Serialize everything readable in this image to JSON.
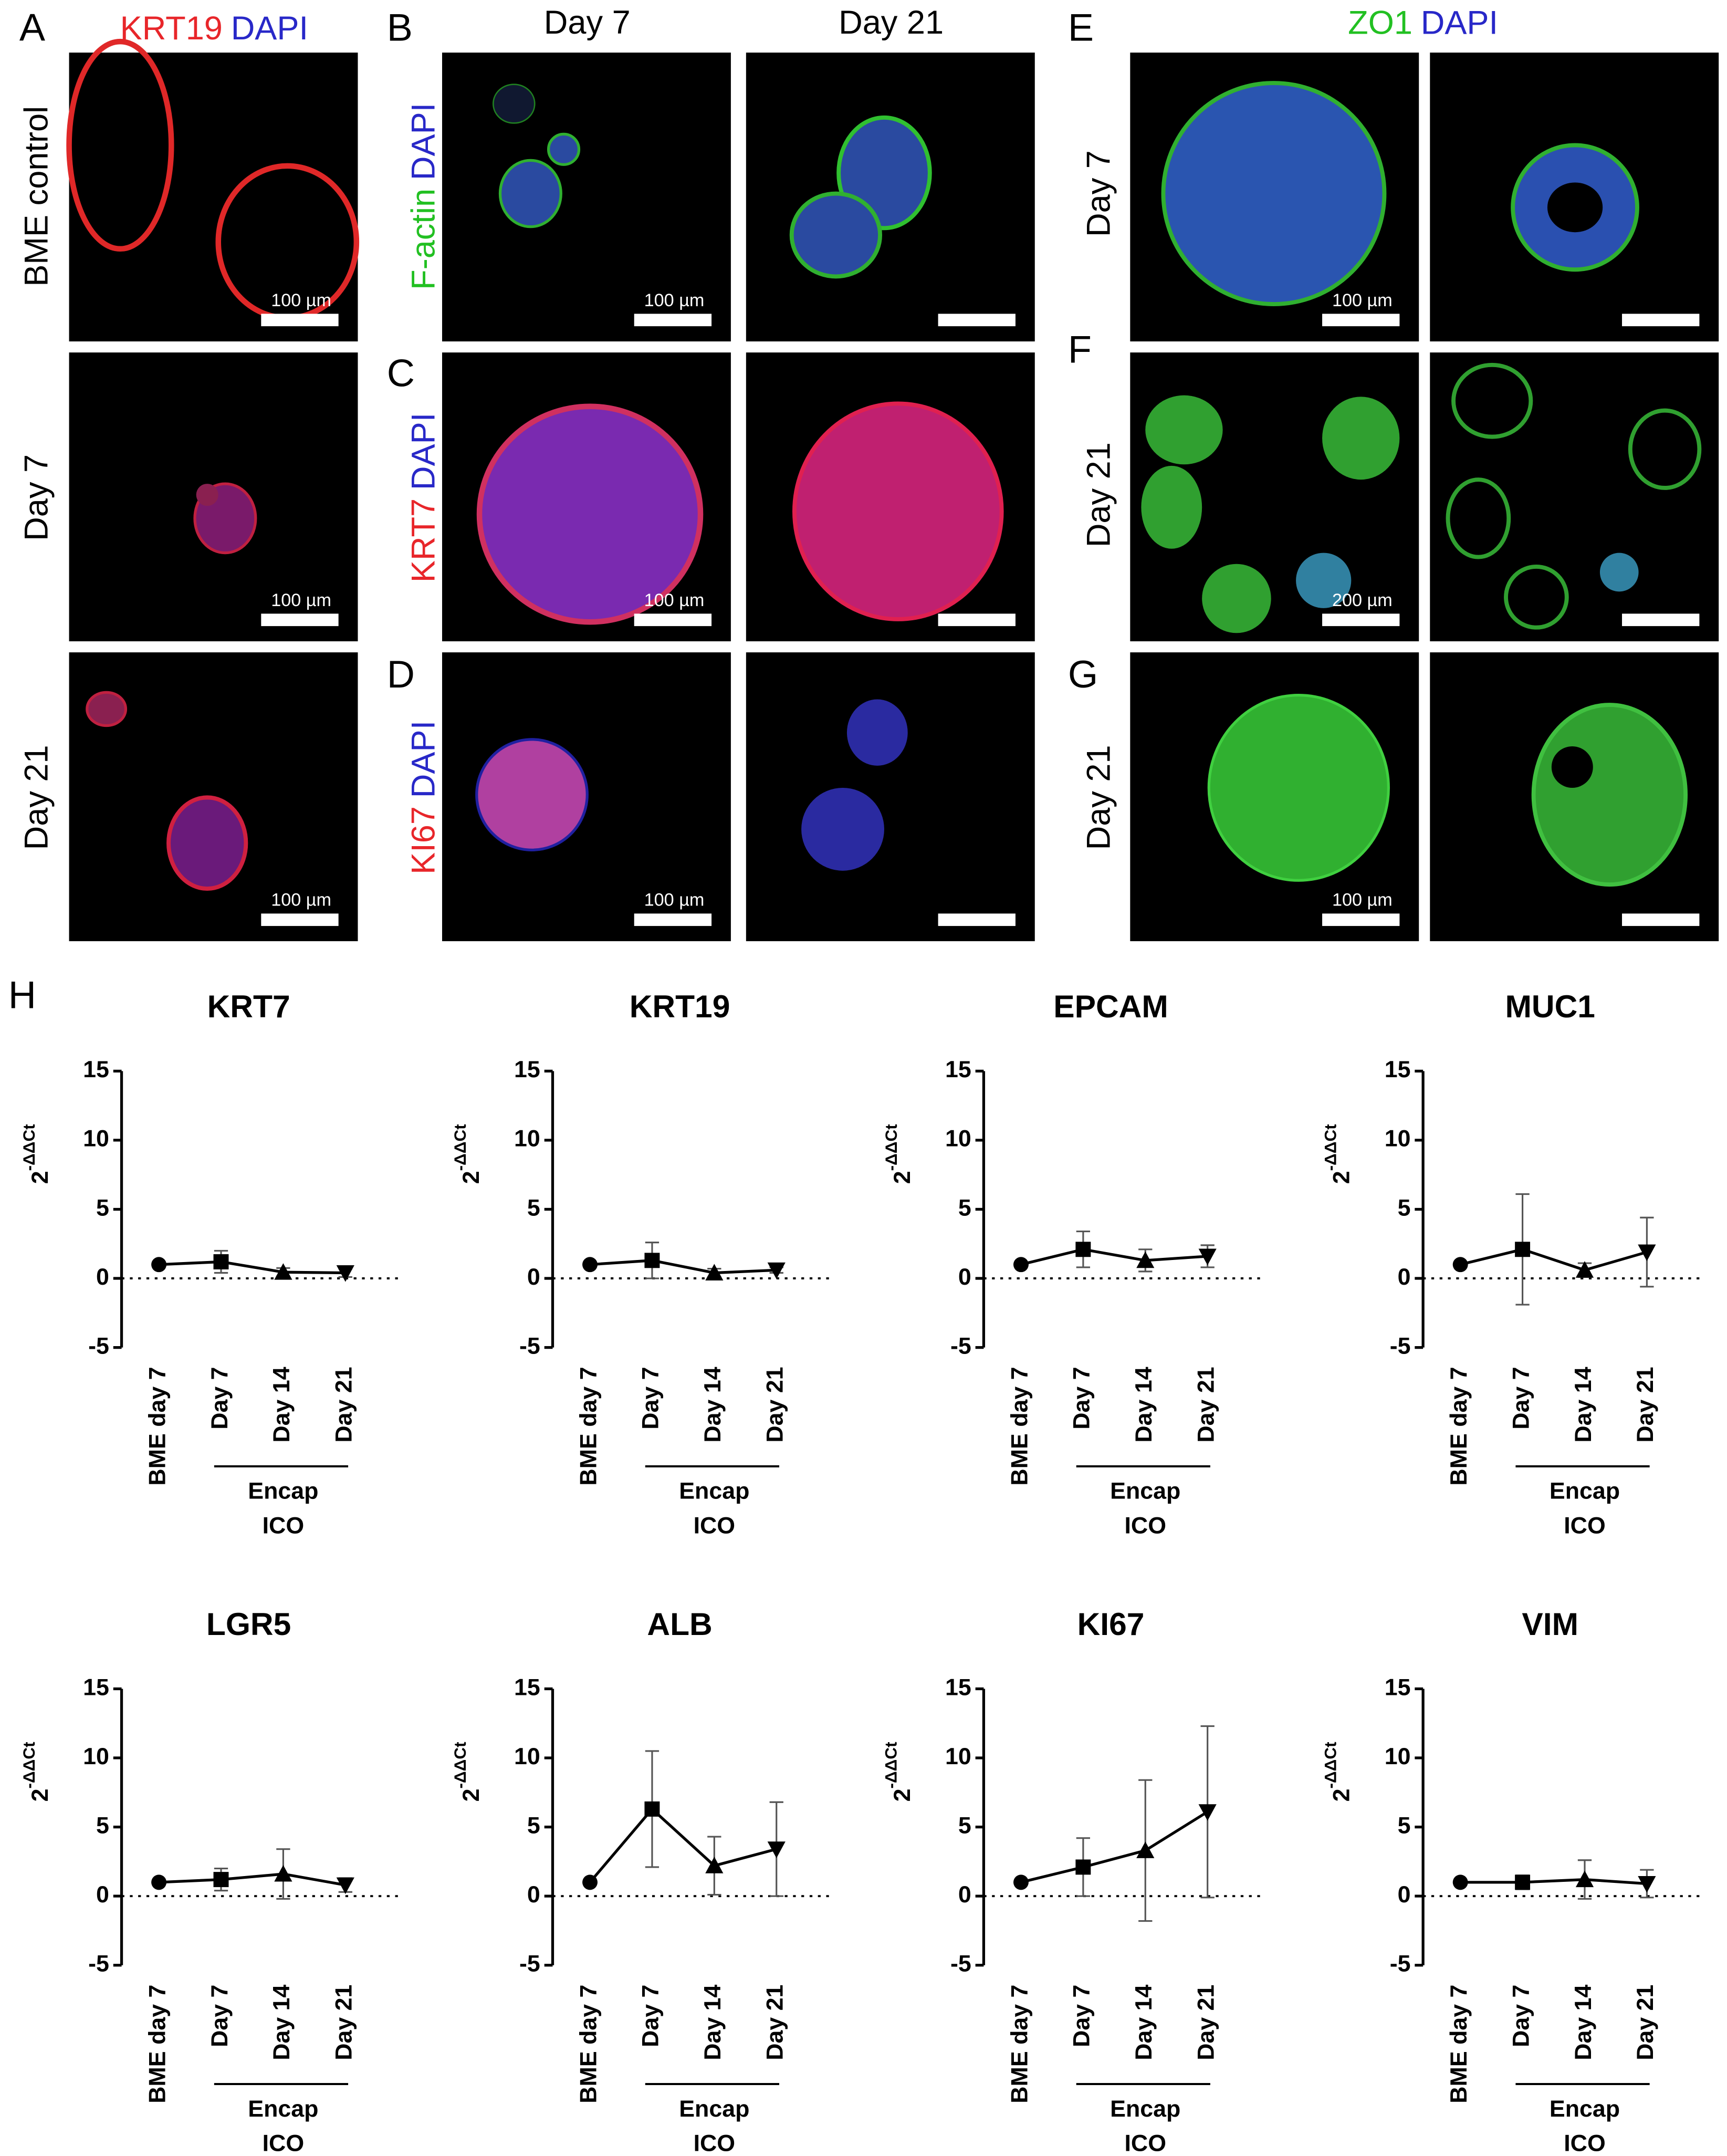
{
  "figure": {
    "A": {
      "letter": "A",
      "stain": [
        "KRT19",
        "DAPI"
      ],
      "rows": [
        "BME control",
        "Day 7",
        "Day 21"
      ],
      "scale_bars": [
        "100 µm",
        "100 µm",
        "100 µm"
      ]
    },
    "B": {
      "letter": "B",
      "columns": [
        "Day 7",
        "Day 21"
      ],
      "stain": [
        "F-actin",
        "DAPI"
      ],
      "scale_bar": "100 µm"
    },
    "C": {
      "letter": "C",
      "stain": [
        "KRT7",
        "DAPI"
      ],
      "scale_bar": "100 µm"
    },
    "D": {
      "letter": "D",
      "stain": [
        "KI67",
        "DAPI"
      ],
      "scale_bar": "100 µm"
    },
    "E": {
      "letter": "E",
      "stain": [
        "ZO1",
        "DAPI"
      ],
      "row": "Day 7",
      "scale_bar": "100 µm"
    },
    "F": {
      "letter": "F",
      "row": "Day 21",
      "scale_bar": "200 µm"
    },
    "G": {
      "letter": "G",
      "row": "Day 21",
      "scale_bar": "100 µm"
    },
    "H": {
      "letter": "H"
    }
  },
  "chart_data": [
    {
      "type": "line",
      "title": "KRT7",
      "y_label": "2",
      "y_label_superscript": "-ΔΔCt",
      "categories": [
        "BME day 7",
        "Day 7",
        "Day 14",
        "Day 21"
      ],
      "group_label": [
        "Encap",
        "ICO"
      ],
      "ylim": [
        -5,
        15
      ],
      "yticks": [
        -5,
        0,
        5,
        10,
        15
      ],
      "hline": 0,
      "markers": [
        "circle",
        "square",
        "triangle-up",
        "triangle-down"
      ],
      "series": [
        {
          "color": "#000000",
          "values": [
            1,
            1.2,
            0.45,
            0.4
          ],
          "errors": [
            0,
            0.8,
            0.3,
            0.3
          ]
        }
      ]
    },
    {
      "type": "line",
      "title": "KRT19",
      "y_label": "2",
      "y_label_superscript": "-ΔΔCt",
      "categories": [
        "BME day 7",
        "Day 7",
        "Day 14",
        "Day 21"
      ],
      "group_label": [
        "Encap",
        "ICO"
      ],
      "ylim": [
        -5,
        15
      ],
      "yticks": [
        -5,
        0,
        5,
        10,
        15
      ],
      "hline": 0,
      "markers": [
        "circle",
        "square",
        "triangle-up",
        "triangle-down"
      ],
      "series": [
        {
          "color": "#000000",
          "values": [
            1,
            1.3,
            0.4,
            0.6
          ],
          "errors": [
            0,
            1.3,
            0.3,
            0.2
          ]
        }
      ]
    },
    {
      "type": "line",
      "title": "EPCAM",
      "y_label": "2",
      "y_label_superscript": "-ΔΔCt",
      "categories": [
        "BME day 7",
        "Day 7",
        "Day 14",
        "Day 21"
      ],
      "group_label": [
        "Encap",
        "ICO"
      ],
      "ylim": [
        -5,
        15
      ],
      "yticks": [
        -5,
        0,
        5,
        10,
        15
      ],
      "hline": 0,
      "markers": [
        "circle",
        "square",
        "triangle-up",
        "triangle-down"
      ],
      "series": [
        {
          "color": "#000000",
          "values": [
            1,
            2.1,
            1.3,
            1.6
          ],
          "errors": [
            0,
            1.3,
            0.8,
            0.8
          ]
        }
      ]
    },
    {
      "type": "line",
      "title": "MUC1",
      "y_label": "2",
      "y_label_superscript": "-ΔΔCt",
      "categories": [
        "BME day 7",
        "Day 7",
        "Day 14",
        "Day 21"
      ],
      "group_label": [
        "Encap",
        "ICO"
      ],
      "ylim": [
        -5,
        15
      ],
      "yticks": [
        -5,
        0,
        5,
        10,
        15
      ],
      "hline": 0,
      "markers": [
        "circle",
        "square",
        "triangle-up",
        "triangle-down"
      ],
      "series": [
        {
          "color": "#000000",
          "values": [
            1,
            2.1,
            0.6,
            1.9
          ],
          "errors": [
            0,
            4,
            0.5,
            2.5
          ]
        }
      ]
    },
    {
      "type": "line",
      "title": "LGR5",
      "y_label": "2",
      "y_label_superscript": "-ΔΔCt",
      "categories": [
        "BME day 7",
        "Day 7",
        "Day 14",
        "Day 21"
      ],
      "group_label": [
        "Encap",
        "ICO"
      ],
      "ylim": [
        -5,
        15
      ],
      "yticks": [
        -5,
        0,
        5,
        10,
        15
      ],
      "hline": 0,
      "markers": [
        "circle",
        "square",
        "triangle-up",
        "triangle-down"
      ],
      "series": [
        {
          "color": "#000000",
          "values": [
            1,
            1.2,
            1.6,
            0.8
          ],
          "errors": [
            0,
            0.8,
            1.8,
            0.5
          ]
        }
      ]
    },
    {
      "type": "line",
      "title": "ALB",
      "y_label": "2",
      "y_label_superscript": "-ΔΔCt",
      "categories": [
        "BME day 7",
        "Day 7",
        "Day 14",
        "Day 21"
      ],
      "group_label": [
        "Encap",
        "ICO"
      ],
      "ylim": [
        -5,
        15
      ],
      "yticks": [
        -5,
        0,
        5,
        10,
        15
      ],
      "hline": 0,
      "markers": [
        "circle",
        "square",
        "triangle-up",
        "triangle-down"
      ],
      "series": [
        {
          "color": "#000000",
          "values": [
            1,
            6.3,
            2.2,
            3.4
          ],
          "errors": [
            0,
            4.2,
            2.1,
            3.4
          ]
        }
      ]
    },
    {
      "type": "line",
      "title": "KI67",
      "y_label": "2",
      "y_label_superscript": "-ΔΔCt",
      "categories": [
        "BME day 7",
        "Day 7",
        "Day 14",
        "Day 21"
      ],
      "group_label": [
        "Encap",
        "ICO"
      ],
      "ylim": [
        -5,
        15
      ],
      "yticks": [
        -5,
        0,
        5,
        10,
        15
      ],
      "hline": 0,
      "markers": [
        "circle",
        "square",
        "triangle-up",
        "triangle-down"
      ],
      "series": [
        {
          "color": "#000000",
          "values": [
            1,
            2.1,
            3.3,
            6.1
          ],
          "errors": [
            0,
            2.1,
            5.1,
            6.2
          ]
        }
      ]
    },
    {
      "type": "line",
      "title": "VIM",
      "y_label": "2",
      "y_label_superscript": "-ΔΔCt",
      "categories": [
        "BME day 7",
        "Day 7",
        "Day 14",
        "Day 21"
      ],
      "group_label": [
        "Encap",
        "ICO"
      ],
      "ylim": [
        -5,
        15
      ],
      "yticks": [
        -5,
        0,
        5,
        10,
        15
      ],
      "hline": 0,
      "markers": [
        "circle",
        "square",
        "triangle-up",
        "triangle-down"
      ],
      "series": [
        {
          "color": "#000000",
          "values": [
            1,
            1,
            1.2,
            0.9
          ],
          "errors": [
            0,
            0.5,
            1.4,
            1
          ]
        }
      ]
    }
  ]
}
